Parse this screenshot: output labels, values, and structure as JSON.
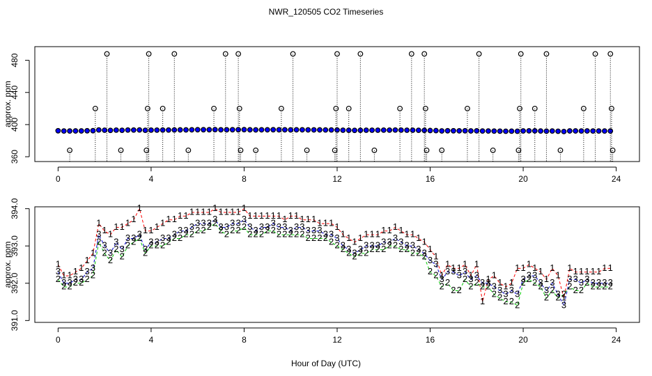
{
  "chart_data": [
    {
      "type": "scatter",
      "title": "NWR_120505  CO2 Timeseries",
      "y_label": "approx. ppm",
      "xlim": [
        -1,
        25
      ],
      "xticks": [
        0,
        4,
        8,
        12,
        16,
        20,
        24
      ],
      "ylim": [
        354,
        497
      ],
      "yticks": [
        360,
        400,
        440,
        480
      ],
      "series": [
        {
          "color": "#0000ff",
          "x": [
            0,
            0.25,
            0.5,
            0.75,
            1,
            1.25,
            1.5,
            1.75,
            2,
            2.25,
            2.5,
            2.75,
            3,
            3.25,
            3.5,
            3.75,
            4,
            4.25,
            4.5,
            4.75,
            5,
            5.25,
            5.5,
            5.75,
            6,
            6.25,
            6.5,
            6.75,
            7,
            7.25,
            7.5,
            7.75,
            8,
            8.25,
            8.5,
            8.75,
            9,
            9.25,
            9.5,
            9.75,
            10,
            10.25,
            10.5,
            10.75,
            11,
            11.25,
            11.5,
            11.75,
            12,
            12.25,
            12.5,
            12.75,
            13,
            13.25,
            13.5,
            13.75,
            14,
            14.25,
            14.5,
            14.75,
            15,
            15.25,
            15.5,
            15.75,
            16,
            16.25,
            16.5,
            16.75,
            17,
            17.25,
            17.5,
            17.75,
            18,
            18.25,
            18.5,
            18.75,
            19,
            19.25,
            19.5,
            19.75,
            20,
            20.25,
            20.5,
            20.75,
            21,
            21.25,
            21.5,
            21.75,
            22,
            22.25,
            22.5,
            22.75,
            23,
            23.25,
            23.5,
            23.75
          ],
          "values": [
            392.3,
            392.0,
            392.0,
            392.1,
            392.1,
            392.3,
            392.4,
            393.3,
            393.0,
            392.8,
            393.1,
            392.9,
            393.2,
            393.2,
            393.3,
            392.9,
            393.1,
            393.1,
            393.2,
            393.2,
            393.3,
            393.4,
            393.4,
            393.5,
            393.6,
            393.6,
            393.6,
            393.7,
            393.5,
            393.5,
            393.6,
            393.6,
            393.7,
            393.5,
            393.4,
            393.5,
            393.5,
            393.6,
            393.5,
            393.5,
            393.4,
            393.5,
            393.5,
            393.4,
            393.4,
            393.4,
            393.3,
            393.3,
            393.2,
            393.0,
            392.9,
            392.8,
            392.9,
            393.0,
            393.0,
            393.0,
            393.1,
            393.1,
            393.2,
            393.1,
            393.0,
            393.0,
            392.9,
            392.8,
            392.6,
            392.5,
            392.1,
            392.3,
            392.3,
            392.2,
            392.3,
            392.1,
            392.2,
            392.0,
            392.0,
            391.9,
            391.8,
            391.7,
            391.8,
            391.7,
            392.1,
            392.2,
            392.2,
            392.0,
            391.8,
            392.0,
            391.7,
            391.4,
            392.1,
            392.1,
            392.0,
            392.1,
            392.0,
            392.0,
            392.0,
            392.0
          ]
        },
        {
          "color": "#000000",
          "drop_lines": true,
          "x": [
            0.5,
            1.6,
            2.1,
            2.7,
            3.8,
            3.85,
            3.9,
            4.5,
            5.0,
            5.6,
            6.7,
            7.2,
            7.75,
            7.8,
            7.85,
            8.5,
            9.6,
            10.1,
            10.7,
            11.9,
            11.95,
            12.0,
            12.5,
            13.0,
            13.6,
            14.7,
            15.2,
            15.75,
            15.8,
            15.85,
            16.5,
            17.6,
            18.1,
            18.7,
            19.8,
            19.85,
            19.9,
            20.5,
            21.0,
            21.6,
            22.6,
            23.1,
            23.75,
            23.8,
            23.85
          ],
          "values": [
            368,
            420,
            488,
            368,
            368,
            420,
            488,
            420,
            488,
            368,
            420,
            488,
            488,
            420,
            368,
            368,
            420,
            488,
            368,
            368,
            420,
            488,
            420,
            488,
            368,
            420,
            488,
            488,
            420,
            368,
            368,
            420,
            488,
            368,
            368,
            420,
            488,
            420,
            488,
            368,
            420,
            488,
            488,
            420,
            368
          ]
        }
      ]
    },
    {
      "type": "line",
      "x_label": "Hour of Day (UTC)",
      "y_label": "approx. ppm",
      "xlim": [
        -1,
        25
      ],
      "xticks": [
        0,
        4,
        8,
        12,
        16,
        20,
        24
      ],
      "ylim": [
        390.95,
        394.05
      ],
      "yticks": [
        {
          "value": 391,
          "label": "391.0"
        },
        {
          "value": 392,
          "label": "392.0"
        },
        {
          "value": 393,
          "label": "393.0"
        },
        {
          "value": 394,
          "label": "394.0"
        }
      ],
      "x": [
        0,
        0.25,
        0.5,
        0.75,
        1,
        1.25,
        1.5,
        1.75,
        2,
        2.25,
        2.5,
        2.75,
        3,
        3.25,
        3.5,
        3.75,
        4,
        4.25,
        4.5,
        4.75,
        5,
        5.25,
        5.5,
        5.75,
        6,
        6.25,
        6.5,
        6.75,
        7,
        7.25,
        7.5,
        7.75,
        8,
        8.25,
        8.5,
        8.75,
        9,
        9.25,
        9.5,
        9.75,
        10,
        10.25,
        10.5,
        10.75,
        11,
        11.25,
        11.5,
        11.75,
        12,
        12.25,
        12.5,
        12.75,
        13,
        13.25,
        13.5,
        13.75,
        14,
        14.25,
        14.5,
        14.75,
        15,
        15.25,
        15.5,
        15.75,
        16,
        16.25,
        16.5,
        16.75,
        17,
        17.25,
        17.5,
        17.75,
        18,
        18.25,
        18.5,
        18.75,
        19,
        19.25,
        19.5,
        19.75,
        20,
        20.25,
        20.5,
        20.75,
        21,
        21.25,
        21.5,
        21.75,
        22,
        22.25,
        22.5,
        22.75,
        23,
        23.25,
        23.5,
        23.75
      ],
      "series": [
        {
          "marker": "1",
          "color": "#ff0000",
          "values": [
            392.5,
            392.2,
            392.2,
            392.3,
            392.4,
            392.6,
            392.8,
            393.6,
            393.4,
            393.3,
            393.5,
            393.5,
            393.6,
            393.7,
            394.0,
            393.4,
            393.4,
            393.5,
            393.6,
            393.7,
            393.7,
            393.8,
            393.8,
            393.9,
            393.9,
            393.9,
            393.9,
            394.0,
            393.9,
            393.9,
            393.9,
            393.9,
            394.0,
            393.8,
            393.8,
            393.8,
            393.8,
            393.8,
            393.8,
            393.7,
            393.8,
            393.8,
            393.7,
            393.7,
            393.7,
            393.6,
            393.6,
            393.6,
            393.5,
            393.3,
            393.2,
            393.1,
            393.2,
            393.3,
            393.3,
            393.3,
            393.4,
            393.4,
            393.5,
            393.4,
            393.3,
            393.3,
            393.2,
            393.1,
            392.9,
            392.7,
            392.2,
            392.5,
            392.4,
            392.4,
            392.5,
            392.2,
            392.5,
            391.5,
            392.1,
            392.2,
            392.0,
            391.9,
            392.0,
            392.4,
            392.4,
            392.5,
            392.4,
            392.3,
            392.1,
            392.4,
            392.2,
            391.6,
            392.4,
            392.3,
            392.3,
            392.3,
            392.3,
            392.3,
            392.4,
            392.4
          ]
        },
        {
          "marker": "2",
          "color": "#00cc00",
          "values": [
            392.1,
            391.9,
            391.9,
            392.0,
            392.0,
            392.1,
            392.2,
            393.1,
            392.8,
            392.6,
            392.9,
            392.7,
            393.0,
            393.1,
            393.2,
            392.8,
            393.0,
            393.0,
            393.0,
            393.1,
            393.2,
            393.2,
            393.3,
            393.3,
            393.4,
            393.4,
            393.5,
            393.6,
            393.4,
            393.3,
            393.4,
            393.4,
            393.5,
            393.3,
            393.3,
            393.3,
            393.4,
            393.4,
            393.3,
            393.3,
            393.3,
            393.3,
            393.3,
            393.2,
            393.2,
            393.2,
            393.2,
            393.1,
            393.0,
            392.9,
            392.8,
            392.7,
            392.8,
            392.8,
            392.9,
            392.9,
            392.9,
            393.0,
            393.0,
            392.9,
            392.9,
            392.8,
            392.8,
            392.7,
            392.3,
            392.2,
            391.9,
            392.0,
            391.8,
            391.8,
            392.1,
            391.9,
            392.0,
            391.9,
            391.9,
            391.7,
            391.6,
            391.5,
            391.5,
            391.4,
            392.0,
            392.1,
            392.0,
            391.9,
            391.6,
            391.8,
            391.6,
            391.7,
            391.9,
            391.8,
            391.8,
            392.0,
            391.9,
            391.9,
            391.9,
            391.9
          ]
        },
        {
          "marker": "3",
          "color": "#0000cc",
          "values": [
            392.3,
            392.0,
            392.0,
            392.1,
            392.1,
            392.3,
            392.4,
            393.3,
            393.0,
            392.8,
            393.1,
            392.9,
            393.2,
            393.2,
            393.3,
            392.9,
            393.1,
            393.1,
            393.2,
            393.2,
            393.3,
            393.4,
            393.4,
            393.5,
            393.6,
            393.6,
            393.6,
            393.7,
            393.5,
            393.5,
            393.6,
            393.6,
            393.7,
            393.5,
            393.4,
            393.5,
            393.5,
            393.6,
            393.5,
            393.5,
            393.4,
            393.5,
            393.5,
            393.4,
            393.4,
            393.4,
            393.3,
            393.3,
            393.2,
            393.0,
            392.9,
            392.8,
            392.9,
            393.0,
            393.0,
            393.0,
            393.1,
            393.1,
            393.2,
            393.1,
            393.0,
            393.0,
            392.9,
            392.8,
            392.6,
            392.5,
            392.1,
            392.3,
            392.3,
            392.2,
            392.3,
            392.1,
            392.2,
            392.0,
            392.0,
            391.9,
            391.8,
            391.7,
            391.8,
            391.7,
            392.1,
            392.2,
            392.2,
            392.0,
            391.8,
            392.0,
            391.7,
            391.4,
            392.1,
            392.1,
            392.0,
            392.1,
            392.0,
            392.0,
            392.0,
            392.0
          ]
        }
      ]
    }
  ]
}
